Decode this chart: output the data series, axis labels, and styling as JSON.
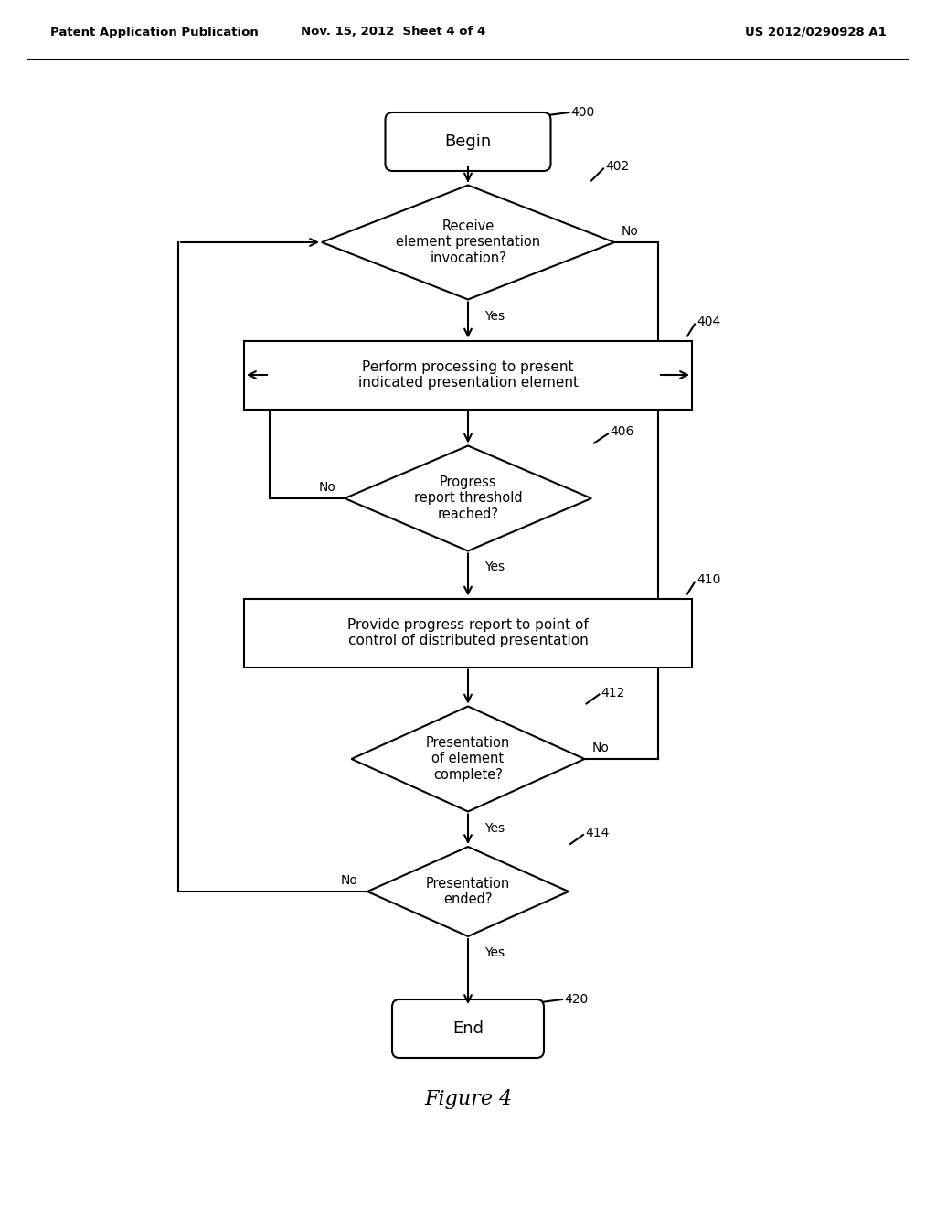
{
  "title_left": "Patent Application Publication",
  "title_mid": "Nov. 15, 2012  Sheet 4 of 4",
  "title_right": "US 2012/0290928 A1",
  "figure_label": "Figure 4",
  "bg_color": "#ffffff",
  "line_color": "#000000",
  "begin_label": "Begin",
  "end_label": "End",
  "d402_label": "Receive\nelement presentation\ninvocation?",
  "b404_label": "Perform processing to present\nindicated presentation element",
  "d406_label": "Progress\nreport threshold\nreached?",
  "b410_label": "Provide progress report to point of\ncontrol of distributed presentation",
  "d412_label": "Presentation\nof element\ncomplete?",
  "d414_label": "Presentation\nended?",
  "ids": {
    "begin": "400",
    "d402": "402",
    "b404": "404",
    "d406": "406",
    "b410": "410",
    "d412": "412",
    "d414": "414",
    "end": "420"
  },
  "yes_labels": [
    "Yes",
    "Yes",
    "Yes",
    "Yes"
  ],
  "no_labels": [
    "No",
    "No",
    "No",
    "No"
  ]
}
